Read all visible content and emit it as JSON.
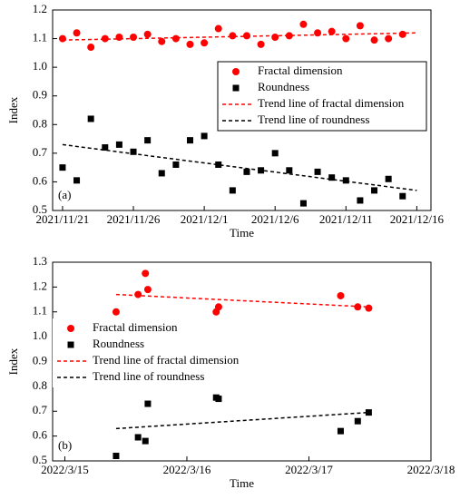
{
  "chart_data": [
    {
      "type": "scatter",
      "xlabel": "Time",
      "ylabel": "Index",
      "annotation": "(a)",
      "xlim": [
        -0.7,
        26
      ],
      "xticks": [
        {
          "value": 0,
          "label": "2021/11/21"
        },
        {
          "value": 5,
          "label": "2021/11/26"
        },
        {
          "value": 10,
          "label": "2021/12/1"
        },
        {
          "value": 15,
          "label": "2021/12/6"
        },
        {
          "value": 20,
          "label": "2021/12/11"
        },
        {
          "value": 25,
          "label": "2021/12/16"
        }
      ],
      "ylim": [
        0.5,
        1.2
      ],
      "yticks": [
        0.5,
        0.6,
        0.7,
        0.8,
        0.9,
        {
          "value": 1.0,
          "label": "1.0"
        },
        1.1,
        1.2
      ],
      "legend": "right",
      "series": [
        {
          "name": "Fractal dimension",
          "color": "#ff0000",
          "marker": "circle",
          "x": [
            0,
            1,
            2,
            3,
            4,
            5,
            6,
            7,
            8,
            9,
            10,
            11,
            12,
            13,
            14,
            15,
            16,
            17,
            18,
            19,
            20,
            21,
            22,
            23,
            24
          ],
          "values": [
            1.1,
            1.12,
            1.07,
            1.1,
            1.105,
            1.105,
            1.115,
            1.09,
            1.1,
            1.08,
            1.085,
            1.135,
            1.11,
            1.11,
            1.08,
            1.105,
            1.11,
            1.15,
            1.12,
            1.125,
            1.1,
            1.145,
            1.095,
            1.1,
            1.115
          ]
        },
        {
          "name": "Roundness",
          "color": "#000000",
          "marker": "square",
          "x": [
            0,
            1,
            2,
            3,
            4,
            5,
            6,
            7,
            8,
            9,
            10,
            11,
            12,
            13,
            14,
            15,
            16,
            17,
            18,
            19,
            20,
            21,
            22,
            23,
            24
          ],
          "values": [
            0.65,
            0.605,
            0.82,
            0.72,
            0.73,
            0.705,
            0.745,
            0.63,
            0.66,
            0.745,
            0.76,
            0.66,
            0.57,
            0.635,
            0.64,
            0.7,
            0.64,
            0.525,
            0.635,
            0.615,
            0.605,
            0.535,
            0.57,
            0.61,
            0.55
          ]
        },
        {
          "name": "Trend line of fractal dimension",
          "color": "#ff0000",
          "line": "dashed",
          "x": [
            0,
            25
          ],
          "values": [
            1.095,
            1.12
          ]
        },
        {
          "name": "Trend line of roundness",
          "color": "#000000",
          "line": "dashed",
          "x": [
            0,
            25
          ],
          "values": [
            0.73,
            0.57
          ]
        }
      ]
    },
    {
      "type": "scatter",
      "xlabel": "Time",
      "ylabel": "Index",
      "annotation": "(b)",
      "xlim": [
        -0.1,
        3
      ],
      "xticks": [
        {
          "value": 0,
          "label": "2022/3/15"
        },
        {
          "value": 1,
          "label": "2022/3/16"
        },
        {
          "value": 2,
          "label": "2022/3/17"
        },
        {
          "value": 3,
          "label": "2022/3/18"
        }
      ],
      "ylim": [
        0.5,
        1.3
      ],
      "yticks": [
        0.5,
        0.6,
        0.7,
        0.8,
        0.9,
        {
          "value": 1.0,
          "label": "1.0"
        },
        1.1,
        1.2,
        1.3
      ],
      "legend": "left",
      "series": [
        {
          "name": "Fractal dimension",
          "color": "#ff0000",
          "marker": "circle",
          "x": [
            0.42,
            0.6,
            0.66,
            0.68,
            1.24,
            1.26,
            2.26,
            2.4,
            2.49
          ],
          "values": [
            1.1,
            1.17,
            1.255,
            1.19,
            1.1,
            1.12,
            1.165,
            1.12,
            1.115
          ]
        },
        {
          "name": "Roundness",
          "color": "#000000",
          "marker": "square",
          "x": [
            0.42,
            0.6,
            0.66,
            0.68,
            1.24,
            1.26,
            2.26,
            2.4,
            2.49
          ],
          "values": [
            0.52,
            0.595,
            0.58,
            0.73,
            0.755,
            0.75,
            0.62,
            0.66,
            0.695
          ]
        },
        {
          "name": "Trend line of fractal dimension",
          "color": "#ff0000",
          "line": "dashed",
          "x": [
            0.42,
            2.49
          ],
          "values": [
            1.17,
            1.12
          ]
        },
        {
          "name": "Trend line of roundness",
          "color": "#000000",
          "line": "dashed",
          "x": [
            0.42,
            2.49
          ],
          "values": [
            0.63,
            0.695
          ]
        }
      ]
    }
  ]
}
